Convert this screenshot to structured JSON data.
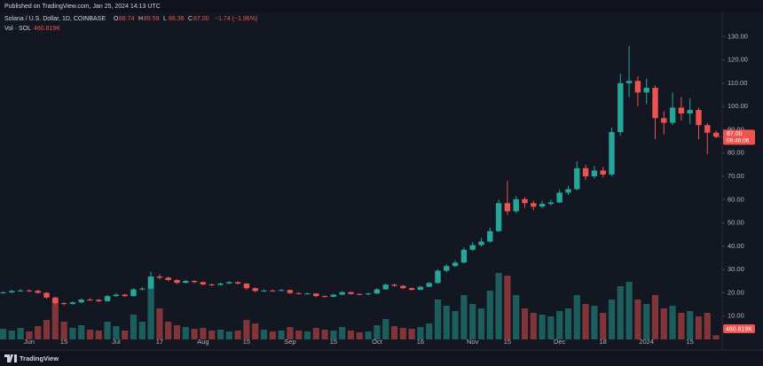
{
  "header": {
    "published": "Published on TradingView.com, Jan 25, 2024 14:13 UTC"
  },
  "footer": {
    "brand": "TradingView"
  },
  "chart_data": {
    "type": "candlestick",
    "symbol": "Solana / U.S. Dollar, 1D, COINBASE",
    "legend_values": [
      {
        "key": "O",
        "value": "88.74"
      },
      {
        "key": "H",
        "value": "89.59"
      },
      {
        "key": "L",
        "value": "86.36"
      },
      {
        "key": "C",
        "value": "87.00"
      }
    ],
    "change": "−1.74 (−1.96%)",
    "volume_name": "Vol · SOL",
    "volume_label": "460.819K",
    "last_price_label": "87.00",
    "countdown": "09:46:06",
    "up_color": "#26a69a",
    "down_color": "#ef5350",
    "grid": false,
    "ylim": [
      0,
      140
    ],
    "yticks": [
      {
        "value": 10,
        "label": "10.00"
      },
      {
        "value": 20,
        "label": "20.00"
      },
      {
        "value": 30,
        "label": "30.00"
      },
      {
        "value": 40,
        "label": "40.00"
      },
      {
        "value": 50,
        "label": "50.00"
      },
      {
        "value": 60,
        "label": "60.00"
      },
      {
        "value": 70,
        "label": "70.00"
      },
      {
        "value": 80,
        "label": "80.00"
      },
      {
        "value": 90,
        "label": "90.00"
      },
      {
        "value": 100,
        "label": "100.00"
      },
      {
        "value": 110,
        "label": "110.00"
      },
      {
        "value": 120,
        "label": "120.00"
      },
      {
        "value": 130,
        "label": "130.00"
      }
    ],
    "volume_lim": [
      0,
      10000
    ],
    "categories": [
      null,
      null,
      null,
      "Jun",
      null,
      null,
      null,
      "15",
      null,
      null,
      null,
      null,
      null,
      "Jul",
      null,
      null,
      null,
      null,
      "17",
      null,
      null,
      null,
      null,
      "Aug",
      null,
      null,
      null,
      null,
      "15",
      null,
      null,
      null,
      null,
      "Sep",
      null,
      null,
      null,
      null,
      "15",
      null,
      null,
      null,
      null,
      "Oct",
      null,
      null,
      null,
      null,
      "16",
      null,
      null,
      null,
      null,
      null,
      "Nov",
      null,
      null,
      null,
      "15",
      null,
      null,
      null,
      null,
      null,
      "Dec",
      null,
      null,
      null,
      null,
      "18",
      null,
      null,
      null,
      null,
      "2024",
      null,
      null,
      null,
      null,
      "15",
      null,
      null,
      null
    ],
    "open": [
      19.9,
      20.2,
      20.8,
      21.0,
      20.9,
      20.0,
      18.0,
      15.6,
      15.2,
      15.9,
      17.1,
      17.0,
      16.4,
      18.6,
      19.2,
      18.6,
      21.5,
      21.8,
      27.0,
      26.5,
      25.5,
      24.3,
      25.1,
      24.6,
      23.6,
      23.4,
      24.0,
      24.6,
      24.0,
      22.0,
      20.8,
      21.0,
      20.9,
      21.2,
      19.9,
      19.6,
      19.7,
      18.6,
      18.3,
      19.2,
      20.3,
      19.5,
      19.3,
      19.7,
      21.5,
      23.5,
      23.0,
      22.0,
      21.3,
      22.6,
      24.2,
      29.5,
      31.5,
      33.0,
      38.5,
      40.5,
      42.0,
      46.5,
      58.5,
      55.0,
      60.2,
      58.5,
      57.0,
      58.2,
      58.8,
      63.0,
      64.5,
      73.5,
      70.0,
      72.5,
      70.8,
      89.0,
      110.0,
      111.0,
      106.0,
      108.0,
      95.0,
      93.0,
      99.5,
      97.0,
      98.5,
      92.0,
      88.74
    ],
    "high": [
      20.6,
      21.2,
      21.6,
      21.5,
      21.2,
      20.3,
      18.3,
      16.0,
      16.4,
      17.6,
      17.7,
      17.3,
      19.1,
      19.8,
      19.6,
      22.0,
      22.5,
      29.0,
      28.0,
      27.0,
      25.8,
      25.6,
      25.4,
      24.9,
      24.0,
      24.4,
      25.0,
      24.9,
      24.2,
      22.3,
      21.5,
      21.4,
      21.7,
      21.4,
      20.2,
      20.1,
      19.9,
      18.9,
      19.6,
      20.7,
      20.5,
      19.8,
      20.1,
      22.0,
      24.1,
      24.0,
      23.3,
      22.3,
      23.0,
      24.7,
      30.2,
      32.3,
      34.0,
      39.5,
      41.8,
      43.6,
      48.0,
      60.0,
      68.0,
      61.5,
      61.0,
      59.5,
      59.5,
      60.0,
      64.2,
      66.0,
      76.5,
      75.0,
      74.5,
      74.0,
      91.0,
      114.0,
      126.0,
      113.0,
      112.0,
      109.0,
      98.0,
      106.0,
      104.0,
      103.5,
      99.5,
      93.0,
      89.59
    ],
    "low": [
      19.6,
      19.9,
      20.5,
      20.4,
      19.6,
      17.4,
      14.9,
      14.6,
      14.9,
      15.6,
      16.6,
      16.0,
      16.2,
      18.3,
      18.2,
      18.4,
      21.0,
      21.5,
      25.8,
      25.0,
      23.8,
      24.0,
      24.1,
      23.2,
      22.9,
      23.1,
      23.8,
      23.6,
      21.3,
      20.2,
      20.5,
      20.5,
      20.7,
      19.5,
      19.2,
      19.3,
      18.2,
      17.9,
      18.1,
      19.0,
      19.2,
      19.0,
      19.1,
      19.5,
      21.3,
      22.6,
      21.6,
      20.9,
      21.1,
      22.4,
      24.0,
      28.8,
      31.0,
      32.6,
      37.9,
      39.8,
      41.5,
      46.0,
      53.5,
      54.2,
      56.5,
      55.5,
      56.3,
      57.4,
      58.4,
      62.0,
      64.0,
      68.5,
      69.0,
      69.5,
      70.0,
      87.5,
      104.0,
      100.0,
      101.0,
      86.0,
      88.0,
      92.0,
      94.0,
      92.5,
      86.0,
      79.5,
      86.36
    ],
    "close": [
      20.2,
      20.8,
      21.0,
      20.9,
      20.0,
      18.0,
      15.6,
      15.2,
      15.9,
      17.1,
      17.0,
      16.4,
      18.6,
      19.2,
      18.6,
      21.5,
      21.8,
      27.0,
      26.5,
      25.5,
      24.3,
      25.1,
      24.6,
      23.6,
      23.4,
      24.0,
      24.6,
      24.0,
      22.0,
      20.8,
      21.0,
      20.9,
      21.2,
      19.9,
      19.6,
      19.7,
      18.6,
      18.3,
      19.2,
      20.3,
      19.5,
      19.3,
      19.7,
      21.5,
      23.5,
      23.0,
      22.0,
      21.3,
      22.6,
      24.2,
      29.5,
      31.5,
      33.0,
      38.5,
      40.5,
      42.0,
      46.5,
      58.5,
      55.0,
      60.2,
      58.5,
      57.0,
      58.2,
      58.8,
      63.0,
      64.5,
      73.5,
      70.0,
      72.5,
      70.8,
      89.0,
      110.0,
      111.0,
      106.0,
      108.0,
      95.0,
      93.0,
      99.5,
      97.0,
      98.5,
      92.0,
      88.74,
      87.0
    ],
    "volume": [
      1200,
      1000,
      1300,
      900,
      1500,
      2200,
      4500,
      2000,
      1300,
      1600,
      1100,
      1000,
      2000,
      1500,
      1000,
      2800,
      2000,
      7000,
      3500,
      2000,
      1600,
      1400,
      1200,
      1300,
      1000,
      1100,
      900,
      1000,
      2200,
      1800,
      1100,
      900,
      1000,
      1400,
      1000,
      900,
      1300,
      1100,
      1000,
      1400,
      1000,
      800,
      900,
      1600,
      2300,
      1500,
      1300,
      1200,
      1400,
      1800,
      4500,
      3800,
      3200,
      5000,
      4000,
      3500,
      5500,
      7500,
      7200,
      5000,
      3500,
      3000,
      2800,
      2600,
      3200,
      3500,
      5000,
      4000,
      3800,
      3000,
      4500,
      6000,
      6500,
      4500,
      4000,
      5000,
      3500,
      3800,
      3000,
      3200,
      2600,
      3000,
      460.819
    ]
  }
}
